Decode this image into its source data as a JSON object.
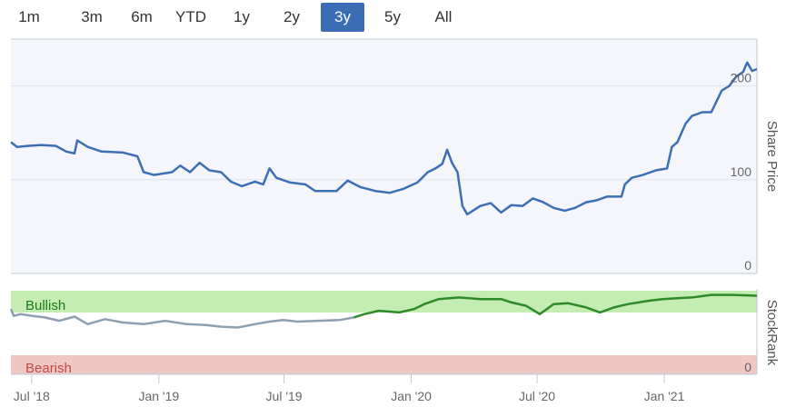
{
  "range_selector": {
    "buttons": [
      "1m",
      "3m",
      "6m",
      "YTD",
      "1y",
      "2y",
      "3y",
      "5y",
      "All"
    ],
    "active": "3y"
  },
  "chart_data": {
    "type": "line",
    "x_start": "2018-06-01",
    "x_end": "2021-05-15",
    "x_ticks": [
      {
        "date": "2018-07-01",
        "label": "Jul '18"
      },
      {
        "date": "2019-01-01",
        "label": "Jan '19"
      },
      {
        "date": "2019-07-01",
        "label": "Jul '19"
      },
      {
        "date": "2020-01-01",
        "label": "Jan '20"
      },
      {
        "date": "2020-07-01",
        "label": "Jul '20"
      },
      {
        "date": "2021-01-01",
        "label": "Jan '21"
      }
    ],
    "share_price": {
      "axis_title": "Share Price",
      "ylim": [
        0,
        250
      ],
      "y_ticks": [
        0,
        100,
        200
      ],
      "color": "#3d6fb5",
      "points": [
        [
          "2018-06-01",
          140
        ],
        [
          "2018-06-10",
          135
        ],
        [
          "2018-06-25",
          136
        ],
        [
          "2018-07-15",
          137
        ],
        [
          "2018-08-05",
          136
        ],
        [
          "2018-08-20",
          130
        ],
        [
          "2018-09-01",
          128
        ],
        [
          "2018-09-05",
          142
        ],
        [
          "2018-09-20",
          135
        ],
        [
          "2018-10-10",
          130
        ],
        [
          "2018-11-10",
          129
        ],
        [
          "2018-12-01",
          125
        ],
        [
          "2018-12-10",
          108
        ],
        [
          "2018-12-25",
          105
        ],
        [
          "2019-01-20",
          108
        ],
        [
          "2019-02-01",
          115
        ],
        [
          "2019-02-15",
          108
        ],
        [
          "2019-03-01",
          118
        ],
        [
          "2019-03-15",
          110
        ],
        [
          "2019-04-01",
          108
        ],
        [
          "2019-04-15",
          98
        ],
        [
          "2019-05-01",
          93
        ],
        [
          "2019-05-20",
          98
        ],
        [
          "2019-06-01",
          95
        ],
        [
          "2019-06-10",
          112
        ],
        [
          "2019-06-20",
          102
        ],
        [
          "2019-07-10",
          97
        ],
        [
          "2019-08-01",
          95
        ],
        [
          "2019-08-15",
          88
        ],
        [
          "2019-09-15",
          88
        ],
        [
          "2019-10-01",
          99
        ],
        [
          "2019-10-20",
          92
        ],
        [
          "2019-11-10",
          88
        ],
        [
          "2019-12-01",
          86
        ],
        [
          "2019-12-20",
          90
        ],
        [
          "2020-01-10",
          97
        ],
        [
          "2020-01-25",
          108
        ],
        [
          "2020-02-05",
          112
        ],
        [
          "2020-02-15",
          117
        ],
        [
          "2020-02-22",
          132
        ],
        [
          "2020-02-29",
          118
        ],
        [
          "2020-03-08",
          108
        ],
        [
          "2020-03-15",
          72
        ],
        [
          "2020-03-22",
          63
        ],
        [
          "2020-04-10",
          72
        ],
        [
          "2020-04-25",
          75
        ],
        [
          "2020-05-10",
          65
        ],
        [
          "2020-05-25",
          73
        ],
        [
          "2020-06-10",
          72
        ],
        [
          "2020-06-25",
          80
        ],
        [
          "2020-07-10",
          76
        ],
        [
          "2020-07-25",
          70
        ],
        [
          "2020-08-10",
          67
        ],
        [
          "2020-08-25",
          70
        ],
        [
          "2020-09-10",
          76
        ],
        [
          "2020-09-25",
          78
        ],
        [
          "2020-10-10",
          82
        ],
        [
          "2020-10-31",
          82
        ],
        [
          "2020-11-05",
          95
        ],
        [
          "2020-11-15",
          102
        ],
        [
          "2020-12-01",
          105
        ],
        [
          "2020-12-20",
          110
        ],
        [
          "2021-01-05",
          112
        ],
        [
          "2021-01-12",
          135
        ],
        [
          "2021-01-20",
          140
        ],
        [
          "2021-02-01",
          160
        ],
        [
          "2021-02-10",
          168
        ],
        [
          "2021-02-25",
          172
        ],
        [
          "2021-03-10",
          172
        ],
        [
          "2021-03-25",
          195
        ],
        [
          "2021-04-05",
          200
        ],
        [
          "2021-04-15",
          210
        ],
        [
          "2021-04-25",
          215
        ],
        [
          "2021-05-01",
          225
        ],
        [
          "2021-05-08",
          216
        ],
        [
          "2021-05-15",
          218
        ]
      ]
    },
    "stockrank": {
      "axis_title": "StockRank",
      "ylim": [
        0,
        100
      ],
      "y_ticks": [
        0
      ],
      "bullish_label": "Bullish",
      "bearish_label": "Bearish",
      "bullish_color": "#c4ecb3",
      "bearish_color": "#efc7c3",
      "line_color_grey": "#8f9fb2",
      "line_color_green": "#2f8a2a",
      "colour_switch_date": "2019-10-20",
      "points": [
        [
          "2018-06-01",
          78
        ],
        [
          "2018-06-05",
          70
        ],
        [
          "2018-06-15",
          72
        ],
        [
          "2018-07-01",
          70
        ],
        [
          "2018-07-20",
          68
        ],
        [
          "2018-08-10",
          64
        ],
        [
          "2018-09-01",
          69
        ],
        [
          "2018-09-20",
          60
        ],
        [
          "2018-10-15",
          66
        ],
        [
          "2018-11-10",
          62
        ],
        [
          "2018-12-10",
          60
        ],
        [
          "2019-01-10",
          64
        ],
        [
          "2019-02-10",
          60
        ],
        [
          "2019-03-10",
          59
        ],
        [
          "2019-04-01",
          57
        ],
        [
          "2019-04-25",
          56
        ],
        [
          "2019-05-20",
          60
        ],
        [
          "2019-06-10",
          63
        ],
        [
          "2019-06-30",
          65
        ],
        [
          "2019-07-20",
          63
        ],
        [
          "2019-08-20",
          64
        ],
        [
          "2019-09-20",
          65
        ],
        [
          "2019-10-10",
          68
        ],
        [
          "2019-10-25",
          72
        ],
        [
          "2019-11-15",
          76
        ],
        [
          "2019-12-15",
          74
        ],
        [
          "2020-01-05",
          78
        ],
        [
          "2020-01-20",
          84
        ],
        [
          "2020-02-10",
          90
        ],
        [
          "2020-03-10",
          92
        ],
        [
          "2020-04-10",
          90
        ],
        [
          "2020-05-10",
          90
        ],
        [
          "2020-05-25",
          86
        ],
        [
          "2020-06-15",
          82
        ],
        [
          "2020-07-05",
          72
        ],
        [
          "2020-07-25",
          84
        ],
        [
          "2020-08-15",
          85
        ],
        [
          "2020-09-10",
          80
        ],
        [
          "2020-09-30",
          74
        ],
        [
          "2020-10-20",
          80
        ],
        [
          "2020-11-10",
          84
        ],
        [
          "2020-12-10",
          88
        ],
        [
          "2020-12-30",
          90
        ],
        [
          "2021-01-20",
          91
        ],
        [
          "2021-02-10",
          92
        ],
        [
          "2021-03-10",
          95
        ],
        [
          "2021-04-10",
          95
        ],
        [
          "2021-05-15",
          94
        ]
      ]
    }
  }
}
